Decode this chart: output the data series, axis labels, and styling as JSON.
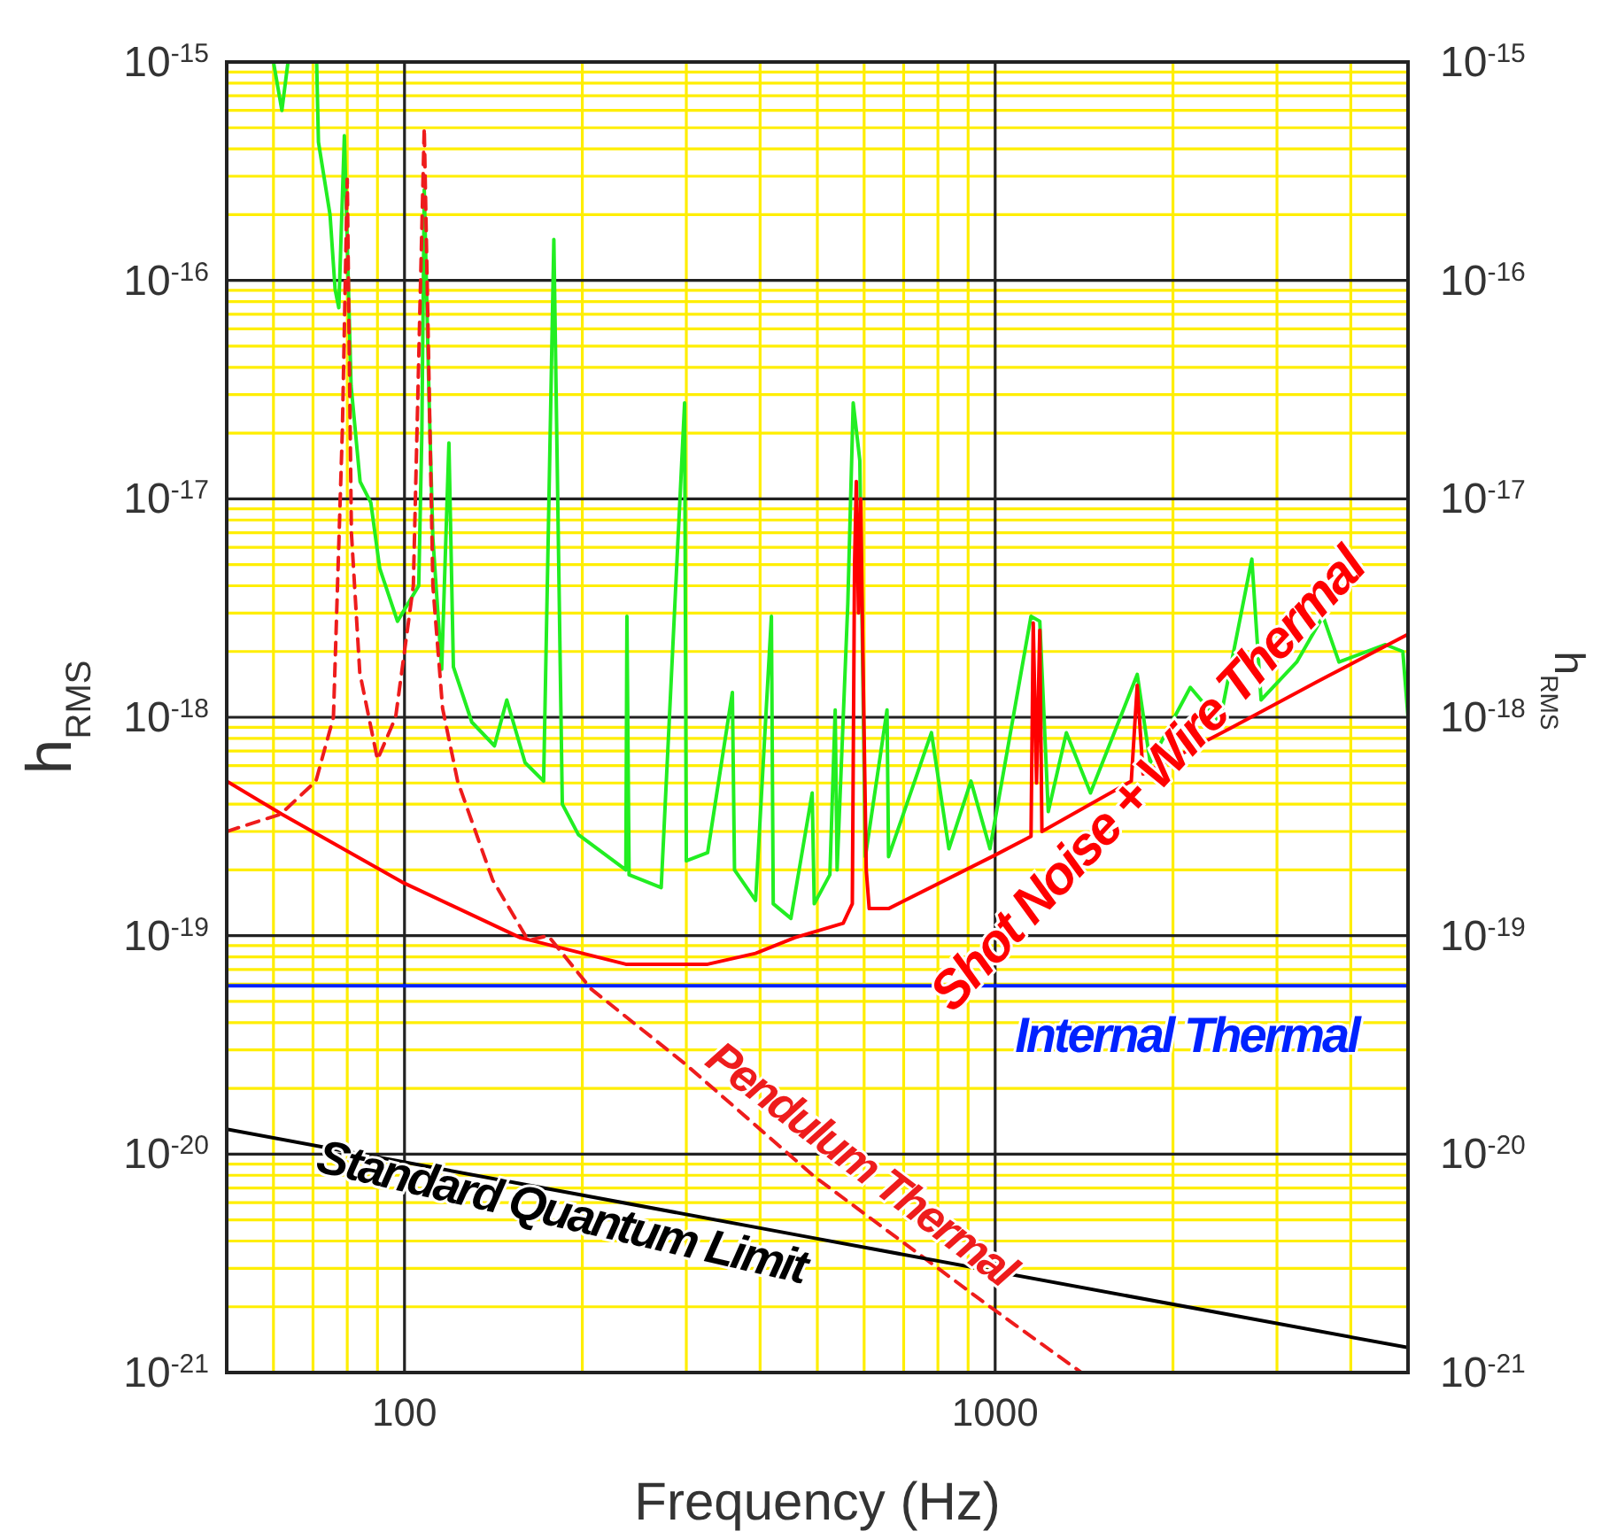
{
  "chart_data": {
    "type": "line",
    "xlabel": "Frequency (Hz)",
    "ylabel": "h$_{RMS}$",
    "y2label": "h$_{RMS}$",
    "log": "xy",
    "grid": true,
    "xlim": [
      50,
      5000
    ],
    "xticks": [
      {
        "value": 50,
        "label": null
      },
      {
        "value": 60,
        "label": null
      },
      {
        "value": 70,
        "label": null
      },
      {
        "value": 80,
        "label": null
      },
      {
        "value": 90,
        "label": null
      },
      100,
      {
        "value": 200,
        "label": null
      },
      {
        "value": 300,
        "label": null
      },
      {
        "value": 400,
        "label": null
      },
      {
        "value": 500,
        "label": null
      },
      {
        "value": 600,
        "label": null
      },
      {
        "value": 700,
        "label": null
      },
      {
        "value": 800,
        "label": null
      },
      {
        "value": 900,
        "label": null
      },
      1000,
      {
        "value": 2000,
        "label": null
      },
      {
        "value": 3000,
        "label": null
      },
      {
        "value": 4000,
        "label": null
      },
      {
        "value": 5000,
        "label": null
      }
    ],
    "ylim": [
      1e-21,
      1e-15
    ],
    "yticks": [
      {
        "value": 1e-21,
        "label": "10$^{-21}$"
      },
      {
        "value": 2e-21,
        "label": null
      },
      {
        "value": 3e-21,
        "label": null
      },
      {
        "value": 4e-21,
        "label": null
      },
      {
        "value": 5e-21,
        "label": null
      },
      {
        "value": 6e-21,
        "label": null
      },
      {
        "value": 7e-21,
        "label": null
      },
      {
        "value": 8e-21,
        "label": null
      },
      {
        "value": 9e-21,
        "label": null
      },
      {
        "value": 1e-20,
        "label": "10$^{-20}$"
      },
      {
        "value": 2e-20,
        "label": null
      },
      {
        "value": 3e-20,
        "label": null
      },
      {
        "value": 4e-20,
        "label": null
      },
      {
        "value": 5e-20,
        "label": null
      },
      {
        "value": 6e-20,
        "label": null
      },
      {
        "value": 7e-20,
        "label": null
      },
      {
        "value": 8e-20,
        "label": null
      },
      {
        "value": 9e-20,
        "label": null
      },
      {
        "value": 1e-19,
        "label": "10$^{-19}$"
      },
      {
        "value": 2e-19,
        "label": null
      },
      {
        "value": 3e-19,
        "label": null
      },
      {
        "value": 4e-19,
        "label": null
      },
      {
        "value": 5e-19,
        "label": null
      },
      {
        "value": 6e-19,
        "label": null
      },
      {
        "value": 7e-19,
        "label": null
      },
      {
        "value": 8e-19,
        "label": null
      },
      {
        "value": 9e-19,
        "label": null
      },
      {
        "value": 1e-18,
        "label": "10$^{-18}$"
      },
      {
        "value": 2e-18,
        "label": null
      },
      {
        "value": 3e-18,
        "label": null
      },
      {
        "value": 4e-18,
        "label": null
      },
      {
        "value": 5e-18,
        "label": null
      },
      {
        "value": 6e-18,
        "label": null
      },
      {
        "value": 7e-18,
        "label": null
      },
      {
        "value": 8e-18,
        "label": null
      },
      {
        "value": 9e-18,
        "label": null
      },
      {
        "value": 1e-17,
        "label": "10$^{-17}$"
      },
      {
        "value": 2e-17,
        "label": null
      },
      {
        "value": 3e-17,
        "label": null
      },
      {
        "value": 4e-17,
        "label": null
      },
      {
        "value": 5e-17,
        "label": null
      },
      {
        "value": 6e-17,
        "label": null
      },
      {
        "value": 7e-17,
        "label": null
      },
      {
        "value": 8e-17,
        "label": null
      },
      {
        "value": 9e-17,
        "label": null
      },
      {
        "value": 1e-16,
        "label": "10$^{-16}$"
      },
      {
        "value": 2e-16,
        "label": null
      },
      {
        "value": 3e-16,
        "label": null
      },
      {
        "value": 4e-16,
        "label": null
      },
      {
        "value": 5e-16,
        "label": null
      },
      {
        "value": 6e-16,
        "label": null
      },
      {
        "value": 7e-16,
        "label": null
      },
      {
        "value": 8e-16,
        "label": null
      },
      {
        "value": 9e-16,
        "label": null
      },
      {
        "value": 1e-15,
        "label": "10$^{-15}$"
      }
    ],
    "series": [
      {
        "color": "#22ee22",
        "x": [
          60,
          62,
          63.5,
          66,
          71,
          71.5,
          74.8,
          76.3,
          77.4,
          79.1,
          81.2,
          84.1,
          87.7,
          90.8,
          97.3,
          105.7,
          107,
          108,
          110,
          111.7,
          115.6,
          118.9,
          121,
          130,
          142,
          149,
          160,
          172,
          179,
          185,
          197,
          237,
          238,
          240,
          272,
          298,
          300,
          326,
          359,
          362,
          393,
          418,
          421,
          451,
          490,
          494,
          525,
          536,
          540,
          563,
          575,
          590,
          603,
          656,
          660,
          780,
          835,
          910,
          980,
          1150,
          1190,
          1230,
          1320,
          1450,
          1740,
          1830,
          2140,
          2400,
          2720,
          2820,
          3240,
          3590,
          3820,
          4580,
          4900,
          5000
        ],
        "values": [
          1e-15,
          6e-16,
          1e-15,
          null,
          1e-15,
          4.3e-16,
          2e-16,
          9.1e-17,
          7.5e-17,
          4.6e-16,
          3.3e-17,
          1.2e-17,
          9.6e-18,
          4.8e-18,
          2.75e-18,
          4e-18,
          2e-17,
          2.6e-16,
          3e-17,
          6.6e-18,
          1.66e-18,
          1.8e-17,
          1.7e-18,
          9.5e-19,
          7.4e-19,
          1.2e-18,
          6.2e-19,
          5.1e-19,
          1.54e-16,
          4e-19,
          2.9e-19,
          2e-19,
          2.9e-18,
          1.9e-19,
          1.66e-19,
          2.75e-17,
          2.2e-19,
          2.4e-19,
          1.3e-18,
          2e-19,
          1.45e-19,
          2.9e-18,
          1.4e-19,
          1.2e-19,
          4.5e-19,
          1.4e-19,
          1.9e-19,
          1.08e-18,
          2e-19,
          3.3e-18,
          2.75e-17,
          1.5e-17,
          2.3e-19,
          1.08e-18,
          2.3e-19,
          8.5e-19,
          2.5e-19,
          5.1e-19,
          2.5e-19,
          2.9e-18,
          2.75e-18,
          3.7e-19,
          8.5e-19,
          4.5e-19,
          1.57e-18,
          6.2e-19,
          1.37e-18,
          9.5e-19,
          5.3e-18,
          1.2e-18,
          1.79e-18,
          2.9e-18,
          1.79e-18,
          2.15e-18,
          2e-18,
          1e-18
        ]
      },
      {
        "name": "Shot Noise + Wire Thermal",
        "color": "#ff0000",
        "x": [
          50,
          62,
          99,
          157,
          237,
          326,
          393,
          458,
          553,
          573,
          578,
          582,
          587,
          592,
          597,
          605,
          612,
          660,
          1000,
          1150,
          1160,
          1175,
          1190,
          1200,
          1700,
          1740,
          1780,
          2500,
          3500,
          5000
        ],
        "values": [
          5.1e-19,
          3.6e-19,
          1.76e-19,
          9.8e-20,
          7.4e-20,
          7.4e-20,
          8.3e-20,
          9.8e-20,
          1.14e-19,
          1.4e-19,
          5e-18,
          1.2e-17,
          3e-18,
          1e-17,
          2e-18,
          2e-19,
          1.33e-19,
          1.33e-19,
          2.34e-19,
          2.85e-19,
          2.7e-18,
          5e-19,
          2.5e-18,
          3e-19,
          5.1e-19,
          1.4e-18,
          5.5e-19,
          8.9e-19,
          1.45e-18,
          2.4e-18
        ]
      },
      {
        "name": "Internal Thermal",
        "color": "#0022ff",
        "x": [
          50,
          5000
        ],
        "values": [
          5.9e-20,
          5.9e-20
        ]
      },
      {
        "name": "Pendulum Thermal",
        "color": "#ee1c1c",
        "line_style": "dashed",
        "x": [
          50,
          61.7,
          70.8,
          75.8,
          78.5,
          80,
          81.3,
          84,
          90,
          96.6,
          103.5,
          108,
          111.7,
          116,
          123,
          141,
          162,
          175,
          207,
          298,
          494,
          980,
          1400
        ],
        "values": [
          3e-19,
          3.6e-19,
          5.1e-19,
          1e-18,
          2.1e-17,
          2.9e-16,
          7e-18,
          1.6e-18,
          6.4e-19,
          1e-18,
          4e-18,
          5e-16,
          4e-18,
          1.1e-18,
          5.1e-19,
          1.8e-19,
          9.5e-20,
          1e-19,
          5.7e-20,
          2.6e-20,
          7.9e-21,
          2e-21,
          1e-21
        ]
      },
      {
        "name": "Standard Quantum Limit",
        "color": "#000000",
        "x": [
          50,
          500,
          5000
        ],
        "values": [
          1.3e-20,
          4.1e-21,
          1.3e-21
        ]
      }
    ]
  }
}
